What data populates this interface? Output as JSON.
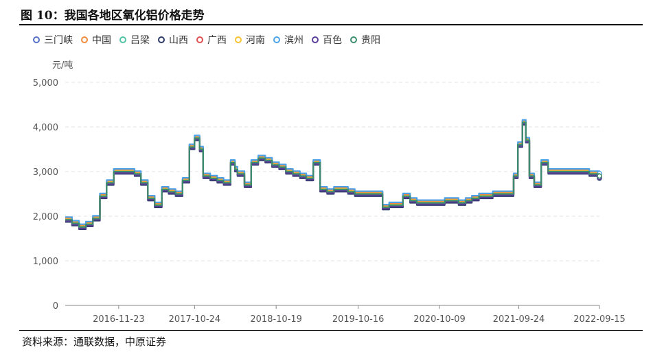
{
  "header": {
    "title": "图 10：我国各地区氧化铝价格走势"
  },
  "footer": {
    "source": "资料来源：通联数据，中原证券"
  },
  "chart_data": {
    "type": "line",
    "ylabel": "元/吨",
    "ylim": [
      0,
      5000
    ],
    "yticks": [
      0,
      1000,
      2000,
      3000,
      4000,
      5000
    ],
    "ytick_labels": [
      "0",
      "1,000",
      "2,000",
      "3,000",
      "4,000",
      "5,000"
    ],
    "xlim": [
      "2016-04-01",
      "2022-09-15"
    ],
    "xticks": [
      "2016-11-23",
      "2017-10-24",
      "2018-10-19",
      "2019-10-16",
      "2020-10-09",
      "2021-09-24",
      "2022-09-15"
    ],
    "grid": true,
    "legend_position": "top-left",
    "base_dates": [
      "2016-04-01",
      "2016-05-01",
      "2016-06-01",
      "2016-07-01",
      "2016-08-01",
      "2016-09-01",
      "2016-10-01",
      "2016-11-01",
      "2016-12-01",
      "2017-01-01",
      "2017-02-01",
      "2017-03-01",
      "2017-04-01",
      "2017-05-01",
      "2017-06-01",
      "2017-07-01",
      "2017-08-01",
      "2017-09-01",
      "2017-10-01",
      "2017-10-24",
      "2017-11-15",
      "2017-12-01",
      "2018-01-01",
      "2018-02-01",
      "2018-03-01",
      "2018-04-01",
      "2018-04-20",
      "2018-05-01",
      "2018-06-01",
      "2018-07-01",
      "2018-08-01",
      "2018-09-01",
      "2018-10-01",
      "2018-11-01",
      "2018-12-01",
      "2019-01-01",
      "2019-02-01",
      "2019-03-01",
      "2019-04-01",
      "2019-05-01",
      "2019-06-01",
      "2019-07-01",
      "2019-08-01",
      "2019-09-01",
      "2019-10-01",
      "2019-11-01",
      "2019-12-01",
      "2020-01-01",
      "2020-02-01",
      "2020-03-01",
      "2020-04-01",
      "2020-05-01",
      "2020-06-01",
      "2020-07-01",
      "2020-08-01",
      "2020-09-01",
      "2020-10-01",
      "2020-11-01",
      "2020-12-01",
      "2021-01-01",
      "2021-02-01",
      "2021-03-01",
      "2021-04-01",
      "2021-05-01",
      "2021-06-01",
      "2021-07-01",
      "2021-08-01",
      "2021-09-01",
      "2021-09-20",
      "2021-10-10",
      "2021-10-25",
      "2021-11-10",
      "2021-12-01",
      "2022-01-01",
      "2022-02-01",
      "2022-03-01",
      "2022-04-01",
      "2022-05-01",
      "2022-06-01",
      "2022-07-01",
      "2022-08-01",
      "2022-09-15"
    ],
    "base_values": [
      1920,
      1840,
      1760,
      1820,
      1950,
      2450,
      2750,
      3000,
      3000,
      3000,
      2950,
      2750,
      2400,
      2250,
      2600,
      2550,
      2500,
      2800,
      3550,
      3750,
      3500,
      2900,
      2850,
      2800,
      2750,
      3200,
      3050,
      2950,
      2700,
      3200,
      3300,
      3250,
      3150,
      3100,
      3000,
      2950,
      2900,
      2850,
      3200,
      2600,
      2550,
      2600,
      2600,
      2550,
      2500,
      2500,
      2500,
      2500,
      2200,
      2250,
      2250,
      2450,
      2350,
      2300,
      2300,
      2300,
      2300,
      2350,
      2350,
      2300,
      2350,
      2400,
      2450,
      2450,
      2500,
      2500,
      2500,
      2900,
      3600,
      4100,
      3700,
      2900,
      2700,
      3200,
      3000,
      3000,
      3000,
      3000,
      3000,
      3000,
      2950,
      2900
    ],
    "series": [
      {
        "name": "三门峡",
        "color": "#5470c6",
        "offset": 30
      },
      {
        "name": "中国",
        "color": "#f08b3e",
        "offset": 40
      },
      {
        "name": "吕梁",
        "color": "#52c4a6",
        "offset": -20
      },
      {
        "name": "山西",
        "color": "#2b3a67",
        "offset": -50
      },
      {
        "name": "广西",
        "color": "#e05050",
        "offset": -10
      },
      {
        "name": "河南",
        "color": "#f4c430",
        "offset": 10
      },
      {
        "name": "滨州",
        "color": "#4ea3e8",
        "offset": 60
      },
      {
        "name": "百色",
        "color": "#5b3f99",
        "offset": -30
      },
      {
        "name": "贵阳",
        "color": "#3c8d6e",
        "offset": 0
      }
    ]
  }
}
